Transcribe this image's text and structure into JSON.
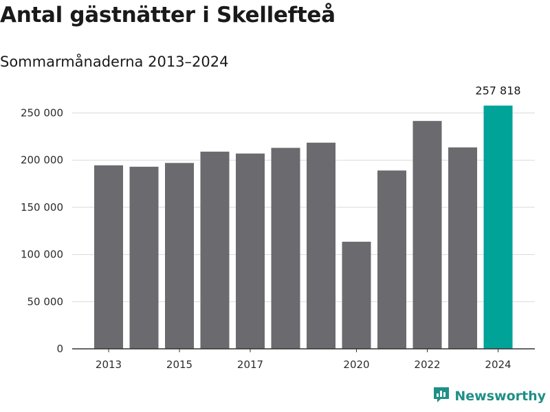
{
  "header": {
    "title": "Antal gästnätter i Skellefteå",
    "subtitle": "Sommarmånaderna 2013–2024"
  },
  "brand": {
    "name": "Newsworthy",
    "icon": "newsworthy-logo-icon",
    "color": "#1f8f86"
  },
  "colors": {
    "bar": "#6b6a6f",
    "highlight": "#00a398",
    "grid": "#d9d9d9",
    "axis": "#333333"
  },
  "chart_data": {
    "type": "bar",
    "title": "Antal gästnätter i Skellefteå",
    "subtitle": "Sommarmånaderna 2013–2024",
    "categories": [
      "2013",
      "2014",
      "2015",
      "2016",
      "2017",
      "2018",
      "2019",
      "2020",
      "2021",
      "2022",
      "2023",
      "2024"
    ],
    "values": [
      194500,
      193000,
      197000,
      209000,
      207000,
      213000,
      218500,
      113500,
      189000,
      241500,
      213500,
      257818
    ],
    "x_tick_labels": [
      "2013",
      "2015",
      "2017",
      "2020",
      "2022",
      "2024"
    ],
    "y_ticks": [
      0,
      50000,
      100000,
      150000,
      200000,
      250000
    ],
    "y_tick_labels": [
      "0",
      "50 000",
      "100 000",
      "150 000",
      "200 000",
      "250 000"
    ],
    "ylim": [
      0,
      262000
    ],
    "highlight_index": 11,
    "highlight_label": "257 818",
    "xlabel": "",
    "ylabel": "",
    "grid": true,
    "legend": "none"
  }
}
